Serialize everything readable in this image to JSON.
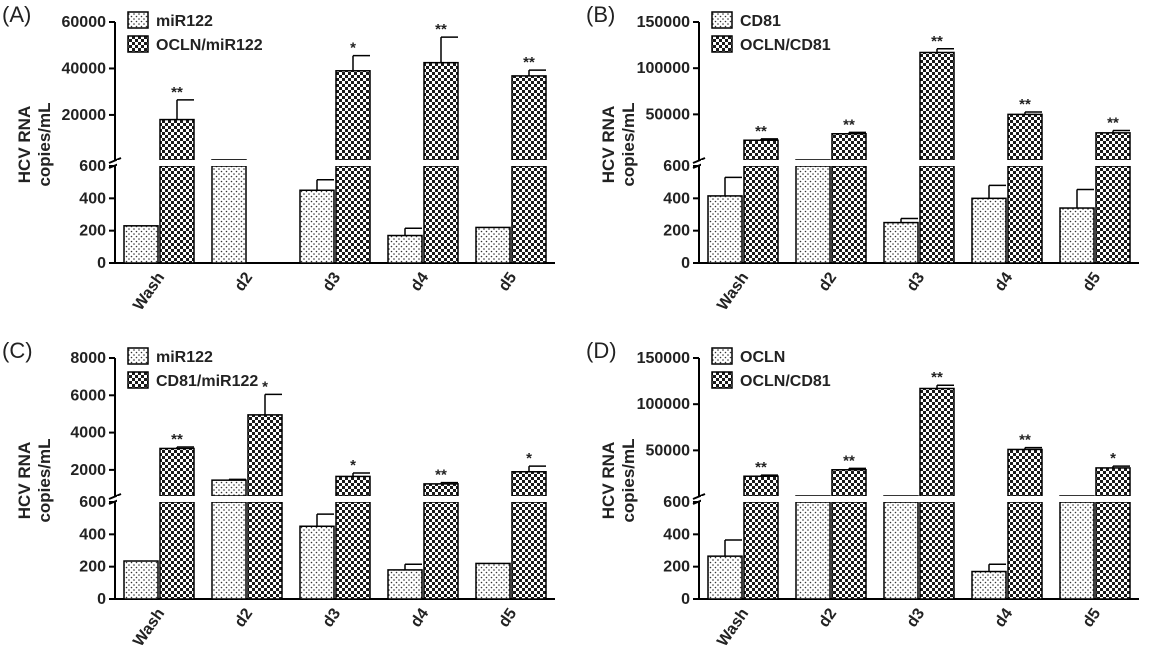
{
  "figure_panels": [
    "A",
    "B",
    "C",
    "D"
  ],
  "chart_data": [
    {
      "type": "bar",
      "panel_label": "(A)",
      "categories": [
        "Wash",
        "d2",
        "d3",
        "d4",
        "d5"
      ],
      "ylabel": "HCV RNA copies/mL",
      "axis_break": true,
      "lower_ylim": [
        0,
        600
      ],
      "upper_ylim": [
        0,
        60000
      ],
      "lower_ticks": [
        "0",
        "200",
        "400",
        "600"
      ],
      "upper_ticks": [
        "20000",
        "40000",
        "60000"
      ],
      "legend_position": "top-left",
      "series": [
        {
          "name": "miR122",
          "pattern": "dots",
          "values": [
            230,
            640,
            450,
            170,
            220
          ],
          "errors": [
            0,
            0,
            65,
            45,
            0
          ],
          "stars": [
            "",
            "",
            "",
            "",
            ""
          ]
        },
        {
          "name": "OCLN/miR122",
          "pattern": "checker",
          "values": [
            18000,
            0,
            39000,
            42500,
            36800
          ],
          "errors": [
            8500,
            0,
            6500,
            11000,
            2500
          ],
          "stars": [
            "**",
            "",
            "*",
            "**",
            "**"
          ]
        }
      ]
    },
    {
      "type": "bar",
      "panel_label": "(B)",
      "categories": [
        "Wash",
        "d2",
        "d3",
        "d4",
        "d5"
      ],
      "ylabel": "HCV RNA copies/mL",
      "axis_break": true,
      "lower_ylim": [
        0,
        600
      ],
      "upper_ylim": [
        0,
        150000
      ],
      "lower_ticks": [
        "0",
        "200",
        "400",
        "600"
      ],
      "upper_ticks": [
        "50000",
        "100000",
        "150000"
      ],
      "legend_position": "top-left",
      "series": [
        {
          "name": "CD81",
          "pattern": "dots",
          "values": [
            415,
            640,
            250,
            400,
            340
          ],
          "errors": [
            115,
            0,
            25,
            80,
            115
          ],
          "stars": [
            "",
            "",
            "",
            "",
            ""
          ]
        },
        {
          "name": "OCLN/CD81",
          "pattern": "checker",
          "values": [
            22000,
            29000,
            117000,
            50000,
            30000
          ],
          "errors": [
            1500,
            1500,
            4000,
            2500,
            2500
          ],
          "stars": [
            "**",
            "**",
            "**",
            "**",
            "**"
          ]
        }
      ]
    },
    {
      "type": "bar",
      "panel_label": "(C)",
      "categories": [
        "Wash",
        "d2",
        "d3",
        "d4",
        "d5"
      ],
      "ylabel": "HCV RNA copies/mL",
      "axis_break": true,
      "lower_ylim": [
        0,
        600
      ],
      "upper_ylim": [
        0,
        8000
      ],
      "lower_ticks": [
        "0",
        "200",
        "400",
        "600"
      ],
      "upper_ticks": [
        "2000",
        "4000",
        "6000",
        "8000"
      ],
      "legend_position": "top-left",
      "series": [
        {
          "name": "miR122",
          "pattern": "dots",
          "values": [
            235,
            1450,
            450,
            180,
            220
          ],
          "errors": [
            0,
            40,
            75,
            35,
            0
          ],
          "stars": [
            "",
            "",
            "",
            "",
            ""
          ]
        },
        {
          "name": "CD81/miR122",
          "pattern": "checker",
          "values": [
            3150,
            4950,
            1650,
            1250,
            1900
          ],
          "errors": [
            80,
            1100,
            180,
            70,
            300
          ],
          "stars": [
            "**",
            "*",
            "*",
            "**",
            "*"
          ]
        }
      ]
    },
    {
      "type": "bar",
      "panel_label": "(D)",
      "categories": [
        "Wash",
        "d2",
        "d3",
        "d4",
        "d5"
      ],
      "ylabel": "HCV RNA copies/mL",
      "axis_break": true,
      "lower_ylim": [
        0,
        600
      ],
      "upper_ylim": [
        0,
        150000
      ],
      "lower_ticks": [
        "0",
        "200",
        "400",
        "600"
      ],
      "upper_ticks": [
        "50000",
        "100000",
        "150000"
      ],
      "legend_position": "top-left",
      "series": [
        {
          "name": "OCLN",
          "pattern": "dots",
          "values": [
            265,
            640,
            640,
            170,
            640
          ],
          "errors": [
            100,
            0,
            0,
            45,
            0
          ],
          "stars": [
            "",
            "",
            "",
            "",
            ""
          ]
        },
        {
          "name": "OCLN/CD81",
          "pattern": "checker",
          "values": [
            22000,
            29000,
            117000,
            51000,
            31000
          ],
          "errors": [
            1200,
            1500,
            3500,
            2000,
            2000
          ],
          "stars": [
            "**",
            "**",
            "**",
            "**",
            "*"
          ]
        }
      ]
    }
  ]
}
